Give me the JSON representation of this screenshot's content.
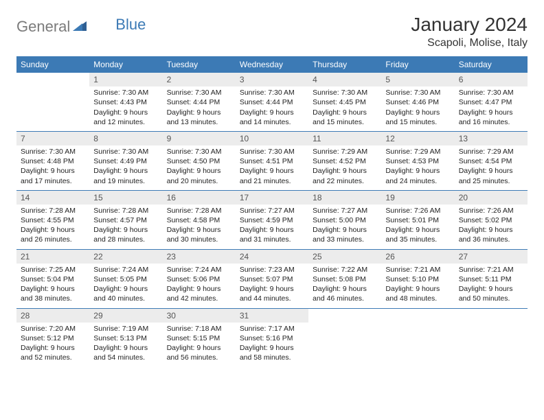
{
  "logo": {
    "general": "General",
    "blue": "Blue"
  },
  "title": "January 2024",
  "location": "Scapoli, Molise, Italy",
  "colors": {
    "header_bg": "#3c7ab5",
    "header_text": "#ffffff",
    "daynum_bg": "#ececec",
    "rule": "#3c7ab5",
    "logo_gray": "#7b7b7b",
    "logo_blue": "#3c7ab5"
  },
  "day_names": [
    "Sunday",
    "Monday",
    "Tuesday",
    "Wednesday",
    "Thursday",
    "Friday",
    "Saturday"
  ],
  "weeks": [
    [
      {
        "n": "",
        "sunrise": "",
        "sunset": "",
        "daylight": ""
      },
      {
        "n": "1",
        "sunrise": "Sunrise: 7:30 AM",
        "sunset": "Sunset: 4:43 PM",
        "daylight": "Daylight: 9 hours and 12 minutes."
      },
      {
        "n": "2",
        "sunrise": "Sunrise: 7:30 AM",
        "sunset": "Sunset: 4:44 PM",
        "daylight": "Daylight: 9 hours and 13 minutes."
      },
      {
        "n": "3",
        "sunrise": "Sunrise: 7:30 AM",
        "sunset": "Sunset: 4:44 PM",
        "daylight": "Daylight: 9 hours and 14 minutes."
      },
      {
        "n": "4",
        "sunrise": "Sunrise: 7:30 AM",
        "sunset": "Sunset: 4:45 PM",
        "daylight": "Daylight: 9 hours and 15 minutes."
      },
      {
        "n": "5",
        "sunrise": "Sunrise: 7:30 AM",
        "sunset": "Sunset: 4:46 PM",
        "daylight": "Daylight: 9 hours and 15 minutes."
      },
      {
        "n": "6",
        "sunrise": "Sunrise: 7:30 AM",
        "sunset": "Sunset: 4:47 PM",
        "daylight": "Daylight: 9 hours and 16 minutes."
      }
    ],
    [
      {
        "n": "7",
        "sunrise": "Sunrise: 7:30 AM",
        "sunset": "Sunset: 4:48 PM",
        "daylight": "Daylight: 9 hours and 17 minutes."
      },
      {
        "n": "8",
        "sunrise": "Sunrise: 7:30 AM",
        "sunset": "Sunset: 4:49 PM",
        "daylight": "Daylight: 9 hours and 19 minutes."
      },
      {
        "n": "9",
        "sunrise": "Sunrise: 7:30 AM",
        "sunset": "Sunset: 4:50 PM",
        "daylight": "Daylight: 9 hours and 20 minutes."
      },
      {
        "n": "10",
        "sunrise": "Sunrise: 7:30 AM",
        "sunset": "Sunset: 4:51 PM",
        "daylight": "Daylight: 9 hours and 21 minutes."
      },
      {
        "n": "11",
        "sunrise": "Sunrise: 7:29 AM",
        "sunset": "Sunset: 4:52 PM",
        "daylight": "Daylight: 9 hours and 22 minutes."
      },
      {
        "n": "12",
        "sunrise": "Sunrise: 7:29 AM",
        "sunset": "Sunset: 4:53 PM",
        "daylight": "Daylight: 9 hours and 24 minutes."
      },
      {
        "n": "13",
        "sunrise": "Sunrise: 7:29 AM",
        "sunset": "Sunset: 4:54 PM",
        "daylight": "Daylight: 9 hours and 25 minutes."
      }
    ],
    [
      {
        "n": "14",
        "sunrise": "Sunrise: 7:28 AM",
        "sunset": "Sunset: 4:55 PM",
        "daylight": "Daylight: 9 hours and 26 minutes."
      },
      {
        "n": "15",
        "sunrise": "Sunrise: 7:28 AM",
        "sunset": "Sunset: 4:57 PM",
        "daylight": "Daylight: 9 hours and 28 minutes."
      },
      {
        "n": "16",
        "sunrise": "Sunrise: 7:28 AM",
        "sunset": "Sunset: 4:58 PM",
        "daylight": "Daylight: 9 hours and 30 minutes."
      },
      {
        "n": "17",
        "sunrise": "Sunrise: 7:27 AM",
        "sunset": "Sunset: 4:59 PM",
        "daylight": "Daylight: 9 hours and 31 minutes."
      },
      {
        "n": "18",
        "sunrise": "Sunrise: 7:27 AM",
        "sunset": "Sunset: 5:00 PM",
        "daylight": "Daylight: 9 hours and 33 minutes."
      },
      {
        "n": "19",
        "sunrise": "Sunrise: 7:26 AM",
        "sunset": "Sunset: 5:01 PM",
        "daylight": "Daylight: 9 hours and 35 minutes."
      },
      {
        "n": "20",
        "sunrise": "Sunrise: 7:26 AM",
        "sunset": "Sunset: 5:02 PM",
        "daylight": "Daylight: 9 hours and 36 minutes."
      }
    ],
    [
      {
        "n": "21",
        "sunrise": "Sunrise: 7:25 AM",
        "sunset": "Sunset: 5:04 PM",
        "daylight": "Daylight: 9 hours and 38 minutes."
      },
      {
        "n": "22",
        "sunrise": "Sunrise: 7:24 AM",
        "sunset": "Sunset: 5:05 PM",
        "daylight": "Daylight: 9 hours and 40 minutes."
      },
      {
        "n": "23",
        "sunrise": "Sunrise: 7:24 AM",
        "sunset": "Sunset: 5:06 PM",
        "daylight": "Daylight: 9 hours and 42 minutes."
      },
      {
        "n": "24",
        "sunrise": "Sunrise: 7:23 AM",
        "sunset": "Sunset: 5:07 PM",
        "daylight": "Daylight: 9 hours and 44 minutes."
      },
      {
        "n": "25",
        "sunrise": "Sunrise: 7:22 AM",
        "sunset": "Sunset: 5:08 PM",
        "daylight": "Daylight: 9 hours and 46 minutes."
      },
      {
        "n": "26",
        "sunrise": "Sunrise: 7:21 AM",
        "sunset": "Sunset: 5:10 PM",
        "daylight": "Daylight: 9 hours and 48 minutes."
      },
      {
        "n": "27",
        "sunrise": "Sunrise: 7:21 AM",
        "sunset": "Sunset: 5:11 PM",
        "daylight": "Daylight: 9 hours and 50 minutes."
      }
    ],
    [
      {
        "n": "28",
        "sunrise": "Sunrise: 7:20 AM",
        "sunset": "Sunset: 5:12 PM",
        "daylight": "Daylight: 9 hours and 52 minutes."
      },
      {
        "n": "29",
        "sunrise": "Sunrise: 7:19 AM",
        "sunset": "Sunset: 5:13 PM",
        "daylight": "Daylight: 9 hours and 54 minutes."
      },
      {
        "n": "30",
        "sunrise": "Sunrise: 7:18 AM",
        "sunset": "Sunset: 5:15 PM",
        "daylight": "Daylight: 9 hours and 56 minutes."
      },
      {
        "n": "31",
        "sunrise": "Sunrise: 7:17 AM",
        "sunset": "Sunset: 5:16 PM",
        "daylight": "Daylight: 9 hours and 58 minutes."
      },
      {
        "n": "",
        "sunrise": "",
        "sunset": "",
        "daylight": ""
      },
      {
        "n": "",
        "sunrise": "",
        "sunset": "",
        "daylight": ""
      },
      {
        "n": "",
        "sunrise": "",
        "sunset": "",
        "daylight": ""
      }
    ]
  ]
}
